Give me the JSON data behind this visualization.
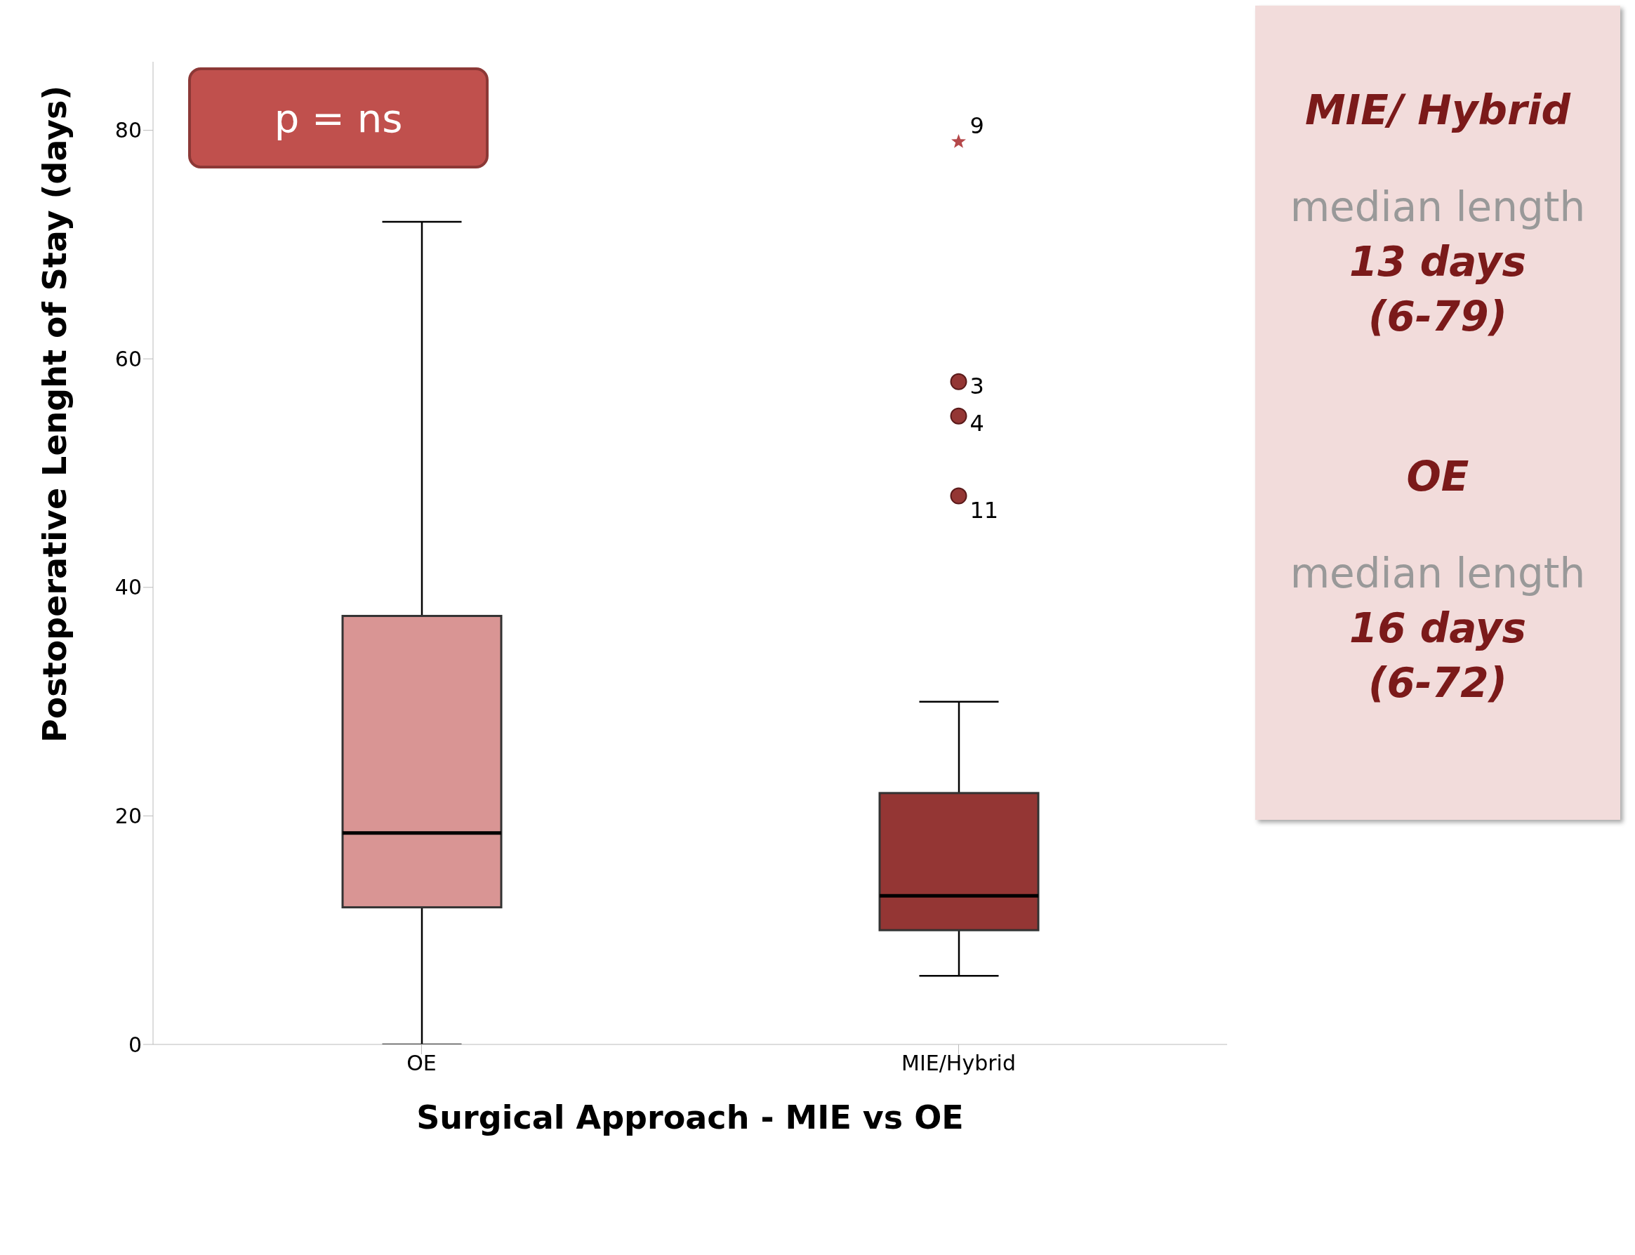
{
  "chart_data": {
    "type": "box",
    "xlabel": "Surgical Approach - MIE vs OE",
    "ylabel": "Postoperative Lenght of Stay (days)",
    "categories": [
      "OE",
      "MIE/Hybrid"
    ],
    "boxes": [
      {
        "low": 0,
        "q1": 12,
        "median": 18.5,
        "q3": 37.5,
        "high": 72
      },
      {
        "low": 6,
        "q1": 10,
        "median": 13,
        "q3": 22,
        "high": 30,
        "outliers": [
          79,
          58,
          55,
          48
        ]
      }
    ],
    "colors": [
      "#d99594",
      "#943634"
    ],
    "ylim": [
      0,
      86
    ],
    "yticks": [
      0,
      20,
      40,
      60,
      80
    ],
    "grid": false,
    "legend": false,
    "annotations": [
      "p = ns",
      "MIE/ Hybrid",
      "median length",
      "13 days",
      "(6-79)",
      "OE",
      "median length",
      "16 days",
      "(6-72)",
      "9",
      "3",
      "4",
      "11"
    ]
  }
}
